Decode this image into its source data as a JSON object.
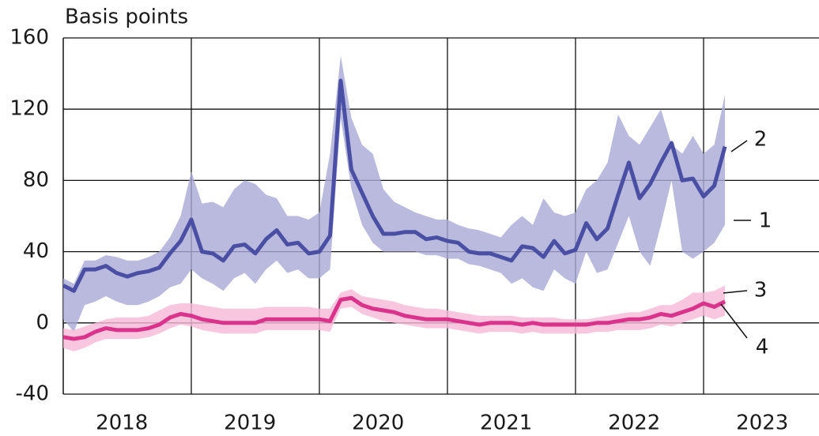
{
  "chart_data": {
    "type": "line",
    "y_label": "Basis points",
    "categories": [
      null,
      null,
      null,
      null,
      null,
      null,
      "2018",
      null,
      null,
      null,
      null,
      null,
      null,
      null,
      null,
      null,
      null,
      null,
      "2019",
      null,
      null,
      null,
      null,
      null,
      null,
      null,
      null,
      null,
      null,
      null,
      "2020",
      null,
      null,
      null,
      null,
      null,
      null,
      null,
      null,
      null,
      null,
      null,
      "2021",
      null,
      null,
      null,
      null,
      null,
      null,
      null,
      null,
      null,
      null,
      null,
      "2022",
      null,
      null,
      null,
      null,
      null,
      null,
      null,
      null,
      null,
      null,
      null,
      "2023",
      null,
      null,
      null,
      null
    ],
    "series": [
      {
        "name": "1",
        "kind": "band",
        "color": "#a7a9d6",
        "lower": [
          2,
          -5,
          10,
          12,
          15,
          12,
          10,
          10,
          12,
          15,
          20,
          22,
          30,
          25,
          22,
          18,
          25,
          28,
          22,
          30,
          35,
          28,
          30,
          25,
          25,
          30,
          115,
          75,
          55,
          45,
          40,
          40,
          40,
          40,
          38,
          38,
          36,
          36,
          33,
          32,
          30,
          28,
          22,
          25,
          20,
          18,
          30,
          25,
          22,
          40,
          28,
          30,
          45,
          60,
          40,
          32,
          55,
          80,
          40,
          36,
          40,
          45,
          55,
          null,
          null,
          null,
          null,
          null,
          null,
          null,
          null
        ],
        "upper": [
          25,
          22,
          35,
          35,
          38,
          37,
          35,
          35,
          37,
          40,
          48,
          60,
          85,
          67,
          68,
          65,
          75,
          80,
          78,
          72,
          70,
          60,
          60,
          58,
          62,
          95,
          150,
          115,
          100,
          95,
          75,
          68,
          65,
          62,
          60,
          58,
          58,
          55,
          53,
          52,
          50,
          48,
          55,
          60,
          55,
          70,
          62,
          60,
          62,
          75,
          80,
          90,
          117,
          105,
          100,
          110,
          120,
          100,
          95,
          105,
          95,
          100,
          128,
          null,
          null,
          null,
          null,
          null,
          null,
          null,
          null
        ]
      },
      {
        "name": "2",
        "kind": "line",
        "color": "#4a4fa3",
        "values": [
          21,
          18,
          30,
          30,
          32,
          28,
          26,
          28,
          29,
          31,
          39,
          46,
          58,
          40,
          39,
          35,
          43,
          44,
          39,
          47,
          52,
          44,
          45,
          39,
          40,
          49,
          136,
          86,
          73,
          60,
          50,
          50,
          51,
          51,
          47,
          48,
          46,
          45,
          40,
          39,
          39,
          37,
          35,
          43,
          42,
          37,
          46,
          39,
          41,
          56,
          47,
          53,
          72,
          90,
          70,
          78,
          90,
          101,
          80,
          81,
          71,
          77,
          99,
          null,
          null,
          null,
          null,
          null,
          null,
          null,
          null
        ]
      },
      {
        "name": "3",
        "kind": "band",
        "color": "#f6b9d7",
        "lower": [
          -14,
          -16,
          -14,
          -11,
          -9,
          -9,
          -9,
          -9,
          -8,
          -6,
          -3,
          -1,
          -2,
          -4,
          -5,
          -6,
          -6,
          -6,
          -6,
          -4,
          -4,
          -4,
          -4,
          -4,
          -4,
          -5,
          8,
          9,
          5,
          3,
          1,
          0,
          -1,
          -2,
          -3,
          -3,
          -3,
          -4,
          -5,
          -6,
          -5,
          -5,
          -5,
          -6,
          -5,
          -6,
          -6,
          -6,
          -6,
          -6,
          -5,
          -5,
          -4,
          -4,
          -4,
          -3,
          -1,
          -2,
          0,
          2,
          4,
          2,
          4,
          null,
          null,
          null,
          null,
          null,
          null,
          null,
          null
        ],
        "upper": [
          -3,
          -4,
          -2,
          0,
          2,
          3,
          3,
          3,
          4,
          7,
          10,
          11,
          11,
          10,
          9,
          8,
          8,
          8,
          8,
          9,
          9,
          9,
          9,
          9,
          8,
          8,
          17,
          19,
          15,
          14,
          13,
          12,
          10,
          9,
          8,
          8,
          7,
          6,
          5,
          4,
          4,
          4,
          4,
          3,
          3,
          3,
          3,
          2,
          2,
          2,
          3,
          4,
          5,
          6,
          6,
          8,
          10,
          10,
          13,
          17,
          17,
          18,
          21,
          null,
          null,
          null,
          null,
          null,
          null,
          null,
          null
        ]
      },
      {
        "name": "4",
        "kind": "line",
        "color": "#d9338b",
        "values": [
          -8,
          -9,
          -8,
          -5,
          -3,
          -4,
          -4,
          -4,
          -3,
          -1,
          3,
          5,
          4,
          2,
          1,
          0,
          0,
          0,
          0,
          2,
          2,
          2,
          2,
          2,
          2,
          1,
          13,
          14,
          10,
          8,
          7,
          6,
          4,
          3,
          2,
          2,
          2,
          1,
          0,
          -1,
          0,
          0,
          0,
          -1,
          0,
          -1,
          -1,
          -1,
          -1,
          -1,
          0,
          0,
          1,
          2,
          2,
          3,
          5,
          4,
          6,
          8,
          11,
          9,
          12,
          null,
          null,
          null,
          null,
          null,
          null,
          null,
          null
        ]
      }
    ],
    "ylim": [
      -40,
      160
    ],
    "yticks": [
      -40,
      0,
      40,
      80,
      120,
      160
    ],
    "grid": true
  }
}
